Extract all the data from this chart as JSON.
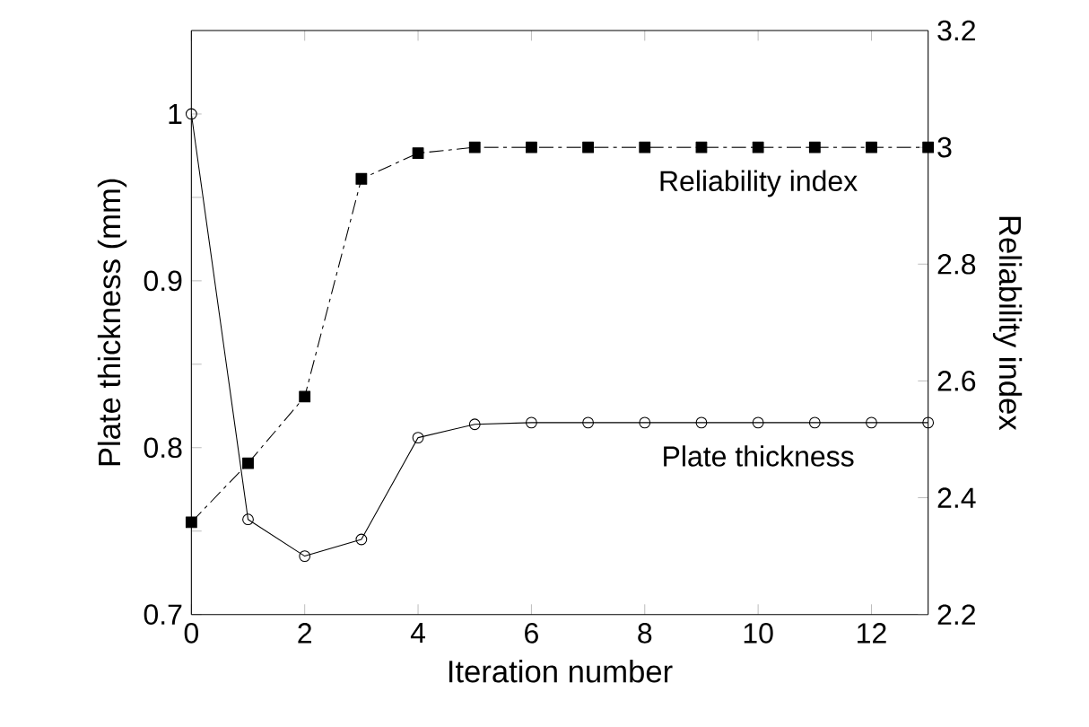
{
  "chart_data": {
    "type": "line",
    "xlabel": "Iteration number",
    "ylabel": "Plate thickness (mm)",
    "y2label": "Reliability index",
    "x": [
      0,
      1,
      2,
      3,
      4,
      5,
      6,
      7,
      8,
      9,
      10,
      11,
      12,
      13
    ],
    "series": [
      {
        "name": "Plate thickness",
        "color": "#000000",
        "marker": "circle",
        "line_style": "solid",
        "values": [
          1.0,
          0.757,
          0.735,
          0.745,
          0.806,
          0.814,
          0.815,
          0.815,
          0.815,
          0.815,
          0.815,
          0.815,
          0.815,
          0.815
        ]
      },
      {
        "name": "Reliability index",
        "color": "#000000",
        "marker": "square",
        "line_style": "dashdot",
        "axis": "y2",
        "values": [
          2.358,
          2.459,
          2.573,
          2.946,
          2.99,
          3.0,
          3.0,
          3.0,
          3.0,
          3.0,
          3.0,
          3.0,
          3.0,
          3.0
        ]
      }
    ],
    "xlim": [
      0,
      13
    ],
    "xticks": [
      0,
      2,
      4,
      6,
      8,
      10,
      12
    ],
    "ylim": [
      0.7,
      1.05
    ],
    "yticks": [
      0.7,
      {
        "value": 0.75,
        "label": null
      },
      0.8,
      {
        "value": 0.85,
        "label": null
      },
      0.9,
      {
        "value": 0.95,
        "label": null
      },
      1
    ],
    "y2lim": [
      2.2,
      3.2
    ],
    "y2ticks": [
      2.2,
      2.4,
      2.6,
      2.8,
      3,
      3.2
    ]
  }
}
